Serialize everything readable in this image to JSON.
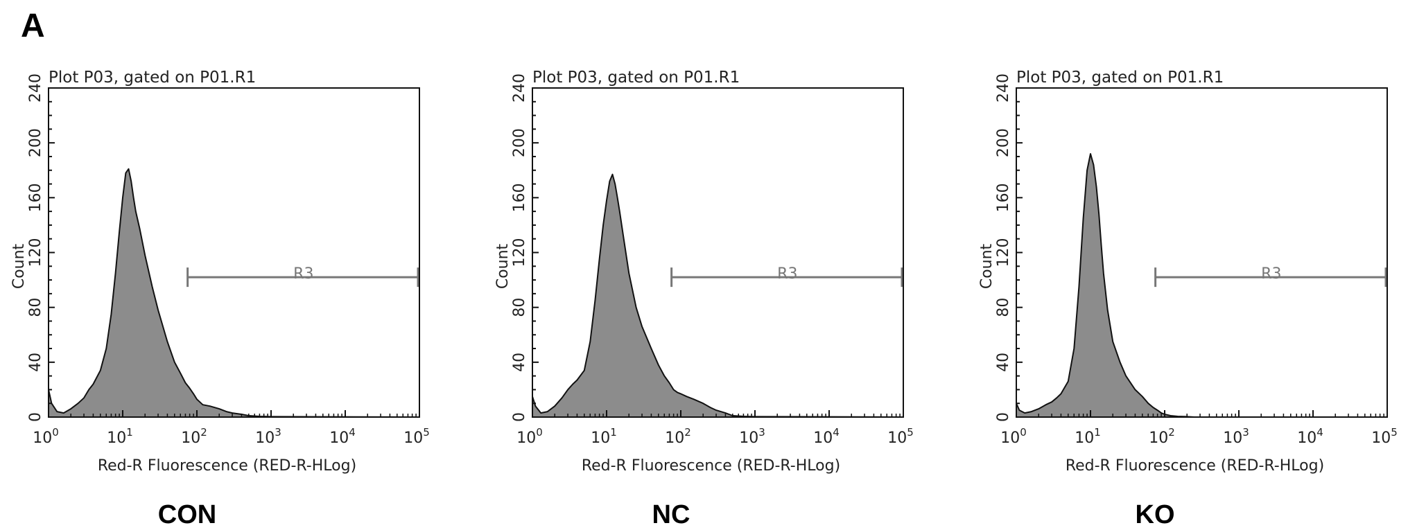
{
  "panel_letter": "A",
  "chart_data": [
    {
      "type": "area",
      "panel": "CON",
      "title": "Plot P03, gated on P01.R1",
      "xlabel": "Red-R Fluorescence (RED-R-HLog)",
      "ylabel": "Count",
      "x_scale": "log10",
      "xlim": [
        1,
        100000
      ],
      "ylim": [
        0,
        240
      ],
      "x_tick_labels": [
        "10^0",
        "10^1",
        "10^2",
        "10^3",
        "10^4",
        "10^5"
      ],
      "y_tick_labels": [
        "0",
        "40",
        "80",
        "120",
        "160",
        "200",
        "240"
      ],
      "gate": {
        "name": "R3",
        "x_start": 75,
        "x_end": 100000,
        "y": 102
      },
      "series": [
        {
          "x": [
            1,
            1.1,
            1.3,
            1.6,
            2,
            2.5,
            3,
            3.5,
            4,
            5,
            6,
            7,
            8,
            9,
            10,
            11,
            12,
            13,
            14,
            15,
            17,
            20,
            25,
            30,
            40,
            50,
            60,
            70,
            80,
            90,
            100,
            120,
            150,
            200,
            250,
            300,
            400,
            500,
            700,
            1000,
            100000
          ],
          "y": [
            20,
            10,
            4,
            3,
            6,
            10,
            14,
            20,
            24,
            34,
            50,
            75,
            105,
            135,
            160,
            178,
            181,
            172,
            160,
            150,
            137,
            118,
            95,
            78,
            55,
            40,
            32,
            25,
            21,
            17,
            13,
            9,
            8,
            6,
            4,
            3,
            2,
            1,
            0.5,
            0.3,
            0
          ]
        }
      ]
    },
    {
      "type": "area",
      "panel": "NC",
      "title": "Plot P03, gated on P01.R1",
      "xlabel": "Red-R Fluorescence (RED-R-HLog)",
      "ylabel": "Count",
      "x_scale": "log10",
      "xlim": [
        1,
        100000
      ],
      "ylim": [
        0,
        240
      ],
      "x_tick_labels": [
        "10^0",
        "10^1",
        "10^2",
        "10^3",
        "10^4",
        "10^5"
      ],
      "y_tick_labels": [
        "0",
        "40",
        "80",
        "120",
        "160",
        "200",
        "240"
      ],
      "gate": {
        "name": "R3",
        "x_start": 75,
        "x_end": 100000,
        "y": 102
      },
      "series": [
        {
          "x": [
            1,
            1.1,
            1.3,
            1.6,
            2,
            2.5,
            3,
            3.5,
            4,
            5,
            6,
            7,
            8,
            9,
            10,
            11,
            12,
            13,
            14,
            15,
            17,
            20,
            25,
            30,
            40,
            50,
            60,
            70,
            80,
            90,
            100,
            120,
            150,
            200,
            250,
            300,
            400,
            500,
            700,
            1000,
            100000
          ],
          "y": [
            15,
            8,
            3,
            4,
            8,
            14,
            20,
            24,
            27,
            34,
            55,
            85,
            115,
            140,
            158,
            172,
            177,
            170,
            160,
            150,
            130,
            105,
            80,
            66,
            50,
            38,
            30,
            25,
            20,
            18,
            17,
            15,
            13,
            10,
            7,
            5,
            3,
            1,
            0.5,
            0.3,
            0
          ]
        }
      ]
    },
    {
      "type": "area",
      "panel": "KO",
      "title": "Plot P03, gated on P01.R1",
      "xlabel": "Red-R Fluorescence (RED-R-HLog)",
      "ylabel": "Count",
      "x_scale": "log10",
      "xlim": [
        1,
        100000
      ],
      "ylim": [
        0,
        240
      ],
      "x_tick_labels": [
        "10^0",
        "10^1",
        "10^2",
        "10^3",
        "10^4",
        "10^5"
      ],
      "y_tick_labels": [
        "0",
        "40",
        "80",
        "120",
        "160",
        "200",
        "240"
      ],
      "gate": {
        "name": "R3",
        "x_start": 75,
        "x_end": 100000,
        "y": 102
      },
      "series": [
        {
          "x": [
            1,
            1.1,
            1.3,
            1.6,
            2,
            2.5,
            3,
            3.5,
            4,
            5,
            6,
            7,
            8,
            9,
            10,
            11,
            12,
            13,
            14,
            15,
            17,
            20,
            25,
            30,
            40,
            50,
            60,
            70,
            80,
            90,
            100,
            120,
            150,
            200,
            250,
            300,
            400,
            500,
            700,
            1000,
            100000
          ],
          "y": [
            10,
            5,
            3,
            4,
            6,
            9,
            11,
            14,
            17,
            26,
            50,
            95,
            145,
            180,
            192,
            184,
            168,
            148,
            125,
            105,
            78,
            55,
            40,
            30,
            20,
            15,
            10,
            7,
            5,
            3,
            2,
            1,
            0.5,
            0.3,
            0,
            0,
            0,
            0,
            0,
            0,
            0
          ]
        }
      ]
    }
  ]
}
